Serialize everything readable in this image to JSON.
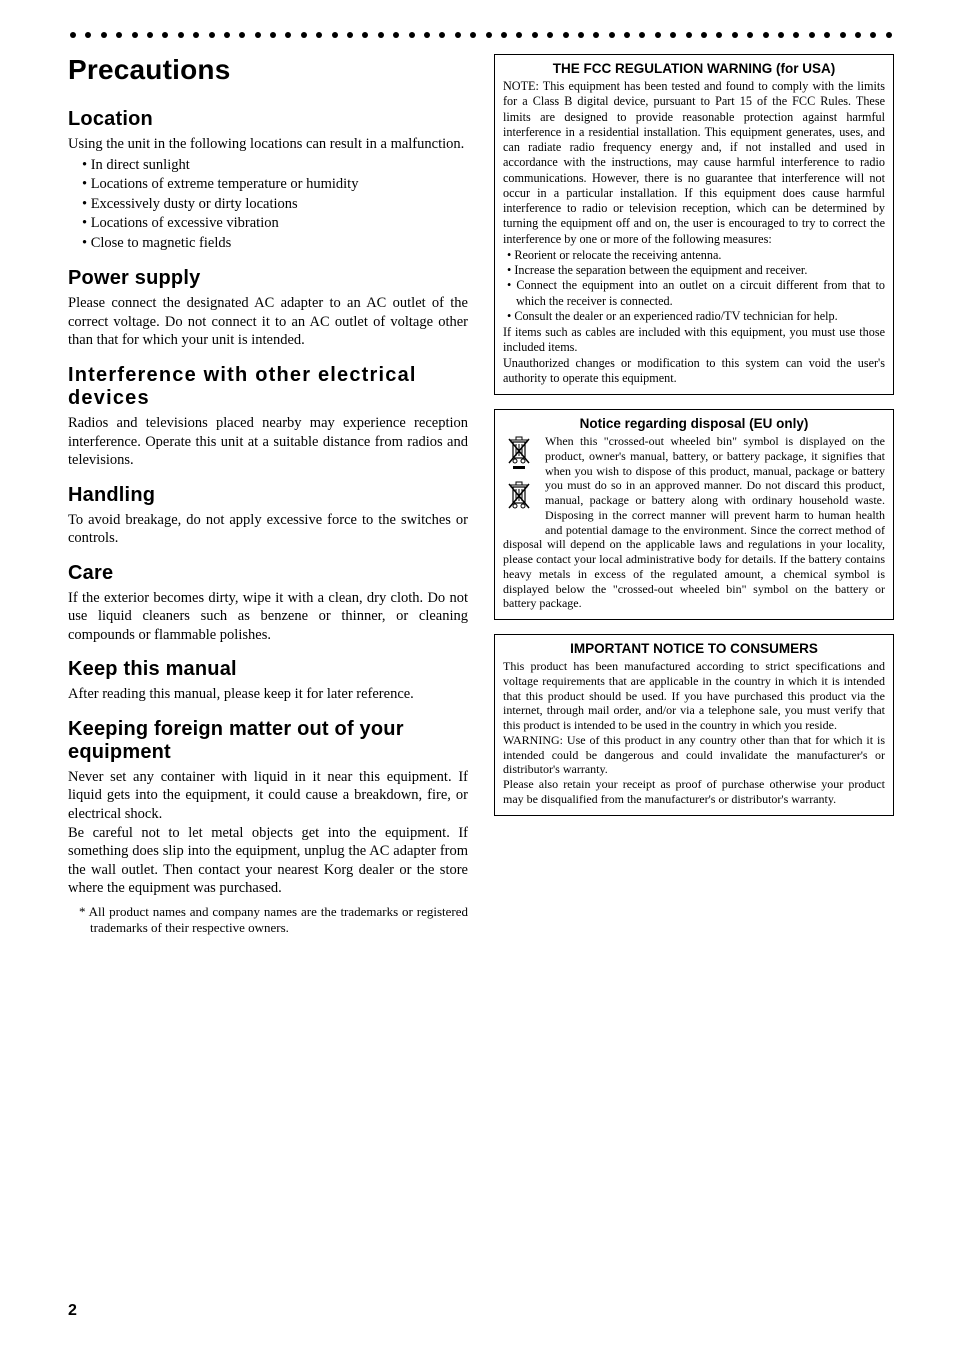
{
  "page_number": "2",
  "dot_count": 54,
  "left": {
    "title": "Precautions",
    "sections": [
      {
        "heading": "Location",
        "body": "Using the unit in the following locations can result in a malfunction.",
        "bullets": [
          "In direct sunlight",
          "Locations of extreme temperature or humidity",
          "Excessively dusty or dirty locations",
          "Locations of excessive vibration",
          "Close to magnetic fields"
        ]
      },
      {
        "heading": "Power supply",
        "body": "Please connect the designated AC adapter to an AC outlet of the correct voltage. Do not connect it to an AC outlet of voltage other than that for which your unit is intended."
      },
      {
        "heading": "Interference with other electrical devices",
        "wide": true,
        "body": "Radios and televisions placed nearby may experience reception interference. Operate this unit at a suitable distance from radios and televisions."
      },
      {
        "heading": "Handling",
        "body": "To avoid breakage, do not apply excessive force to the switches or controls."
      },
      {
        "heading": "Care",
        "body": "If the exterior becomes dirty, wipe it with a clean, dry cloth. Do not use liquid cleaners such as benzene or thinner, or cleaning compounds or flammable polishes."
      },
      {
        "heading": "Keep this manual",
        "body": "After reading this manual, please keep it for later reference."
      },
      {
        "heading": "Keeping foreign matter out of your equipment",
        "body": "Never set any container with liquid in it near this equipment. If liquid gets into the equipment, it could cause a breakdown, fire, or electrical shock.",
        "body2": "Be careful not to let metal objects get into the equipment. If something does slip into the equipment, unplug the AC adapter from the wall outlet. Then contact your nearest Korg dealer or the store where the equipment was purchased."
      }
    ],
    "footnote": "* All product names and company names are the trademarks or registered trademarks of their respective owners."
  },
  "right": {
    "fcc": {
      "title": "THE FCC REGULATION WARNING (for USA)",
      "p1": "NOTE: This equipment has been tested and found to comply with the limits for a Class B digital device, pursuant to Part 15 of the FCC Rules. These limits are designed to provide reasonable protection against harmful interference in a residential installation. This equipment generates, uses, and can radiate radio frequency energy and, if not installed and used in accordance with the instructions, may cause harmful interference to radio communications. However, there is no guarantee that interference will not occur in a particular installation. If this equipment does cause harmful interference to radio or television reception, which can be determined by turning the equipment off and on, the user is encouraged to try to correct the interference by one or more of the following measures:",
      "bullets": [
        "Reorient or relocate the receiving antenna.",
        "Increase the separation between the equipment and receiver.",
        "Connect the equipment into an outlet on a circuit different from that to which the receiver is connected.",
        "Consult the dealer or an experienced radio/TV technician for help."
      ],
      "p2": "If items such as cables are included with this equipment, you must use those included items.",
      "p3": "Unauthorized changes or modification to this system can void the user's authority to operate this equipment."
    },
    "disposal": {
      "title": "Notice regarding disposal (EU only)",
      "body": "When this \"crossed-out wheeled bin\" symbol is displayed on the product, owner's manual, battery, or battery package, it signifies that when you wish to dispose of this product, manual, package or battery you must do so in an approved manner. Do not discard this product, manual, package or battery along with ordinary household waste. Disposing in the correct manner will prevent harm to human health and potential damage to the environment. Since the correct method of disposal will depend on the applicable laws and regulations in your locality, please contact your local administrative body for details. If the battery contains heavy metals in excess of the regulated amount, a chemical symbol is displayed below the \"crossed-out wheeled bin\" symbol on the battery or battery package."
    },
    "consumers": {
      "title": "IMPORTANT NOTICE TO CONSUMERS",
      "p1": "This product has been manufactured according to strict specifications and voltage requirements that are applicable in the country in which it is intended that this product should be used. If you have purchased this product via the internet, through mail order, and/or via a telephone sale, you must verify that this product is intended to be used in the country in which you reside.",
      "p2": "WARNING: Use of this product in any country other than that for which it is intended could be dangerous and could invalidate the manufacturer's or distributor's warranty.",
      "p3": "Please also retain your receipt as proof of purchase otherwise your product may be disqualified from the manufacturer's or distributor's warranty."
    }
  }
}
